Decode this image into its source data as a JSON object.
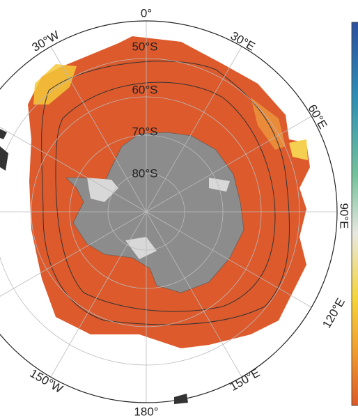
{
  "map": {
    "longitude_labels": [
      "0°",
      "30°E",
      "60°E",
      "90°E",
      "120°E",
      "150°E",
      "180°",
      "150°W",
      "30°W"
    ],
    "latitude_labels": [
      "50°S",
      "60°S",
      "70°S",
      "80°S"
    ]
  }
}
